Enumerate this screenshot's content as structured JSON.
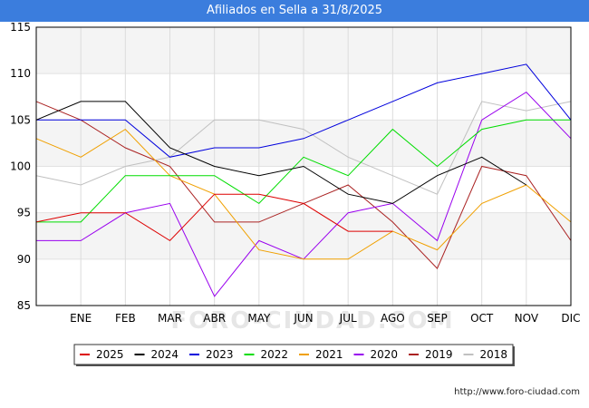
{
  "title": "Afiliados en Sella a 31/8/2025",
  "footer_url": "http://www.foro-ciudad.com",
  "watermark": "FORO-CIUDAD.COM",
  "chart_data": {
    "type": "line",
    "title": "Afiliados en Sella a 31/8/2025",
    "categories": [
      "",
      "ENE",
      "FEB",
      "MAR",
      "ABR",
      "MAY",
      "JUN",
      "JUL",
      "AGO",
      "SEP",
      "OCT",
      "NOV",
      "DIC"
    ],
    "ylim": [
      85,
      115
    ],
    "yticks": [
      85,
      90,
      95,
      100,
      105,
      110,
      115
    ],
    "grid": true,
    "legend_position": "bottom",
    "series": [
      {
        "name": "2025",
        "color": "#dd0000",
        "values": [
          94,
          95,
          95,
          92,
          97,
          97,
          96,
          93,
          93,
          null,
          null,
          null,
          null
        ]
      },
      {
        "name": "2024",
        "color": "#000000",
        "values": [
          105,
          107,
          107,
          102,
          100,
          99,
          100,
          97,
          96,
          99,
          101,
          98,
          null
        ]
      },
      {
        "name": "2023",
        "color": "#0000dd",
        "values": [
          105,
          105,
          105,
          101,
          102,
          102,
          103,
          105,
          107,
          109,
          110,
          111,
          105
        ]
      },
      {
        "name": "2022",
        "color": "#00dd00",
        "values": [
          94,
          94,
          99,
          99,
          99,
          96,
          101,
          99,
          104,
          100,
          104,
          105,
          105
        ]
      },
      {
        "name": "2021",
        "color": "#f0a000",
        "values": [
          103,
          101,
          104,
          99,
          97,
          91,
          90,
          90,
          93,
          91,
          96,
          98,
          94
        ]
      },
      {
        "name": "2020",
        "color": "#9900ee",
        "values": [
          92,
          92,
          95,
          96,
          86,
          92,
          90,
          95,
          96,
          92,
          105,
          108,
          103
        ]
      },
      {
        "name": "2019",
        "color": "#aa2222",
        "values": [
          107,
          105,
          102,
          100,
          94,
          94,
          96,
          98,
          94,
          89,
          100,
          99,
          92
        ]
      },
      {
        "name": "2018",
        "color": "#c0c0c0",
        "values": [
          99,
          98,
          100,
          101,
          105,
          105,
          104,
          101,
          99,
          97,
          107,
          106,
          107
        ]
      }
    ]
  }
}
